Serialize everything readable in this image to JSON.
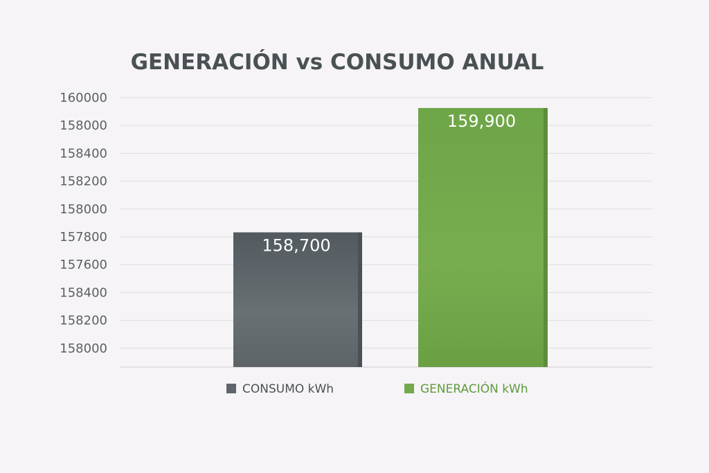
{
  "chart_data": {
    "type": "bar",
    "title": "GENERACIÓN vs CONSUMO ANUAL",
    "categories": [
      "CONSUMO kWh",
      "GENERACIÓN kWh"
    ],
    "values": [
      158700,
      159900
    ],
    "value_labels": [
      "158,700",
      "159,900"
    ],
    "tick_labels": [
      "160000",
      "158000",
      "158400",
      "158200",
      "158000",
      "157800",
      "157600",
      "158400",
      "158200",
      "158000"
    ],
    "grid": true,
    "legend": {
      "position": "bottom",
      "entries": [
        "CONSUMO kWh",
        "GENERACIÓN kWh"
      ]
    },
    "colors": {
      "consumo": "#5f666b",
      "generacion": "#72a94a",
      "title": "#4a5154",
      "background": "#f6f4f7"
    }
  }
}
